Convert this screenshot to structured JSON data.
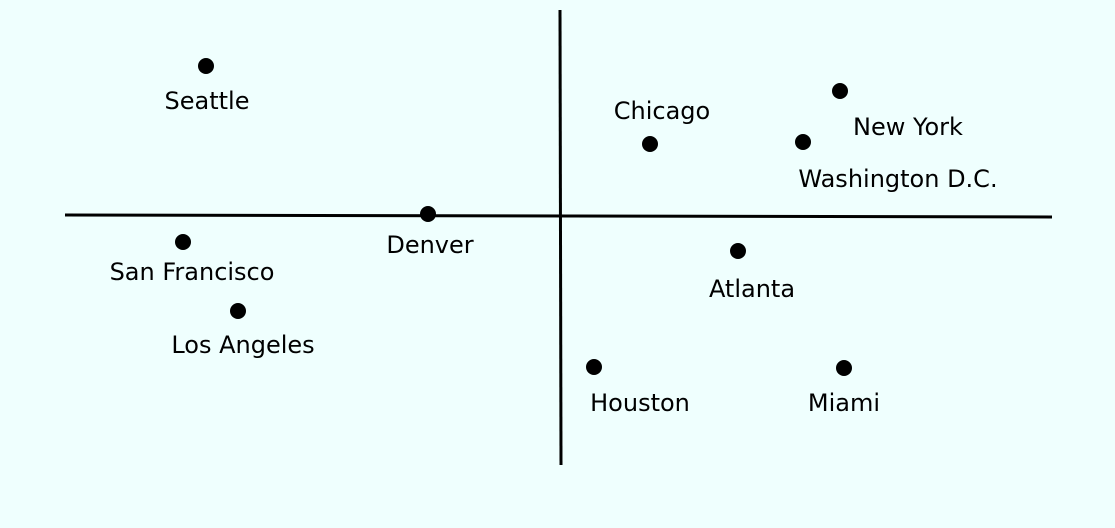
{
  "nodes": [
    {
      "label": "Seattle"
    },
    {
      "label": "Chicago"
    },
    {
      "label": "New York"
    },
    {
      "label": "Washington D.C."
    },
    {
      "label": "Denver"
    },
    {
      "label": "San Francisco"
    },
    {
      "label": "Los Angeles"
    },
    {
      "label": "Atlanta"
    },
    {
      "label": "Houston"
    },
    {
      "label": "Miami"
    }
  ]
}
